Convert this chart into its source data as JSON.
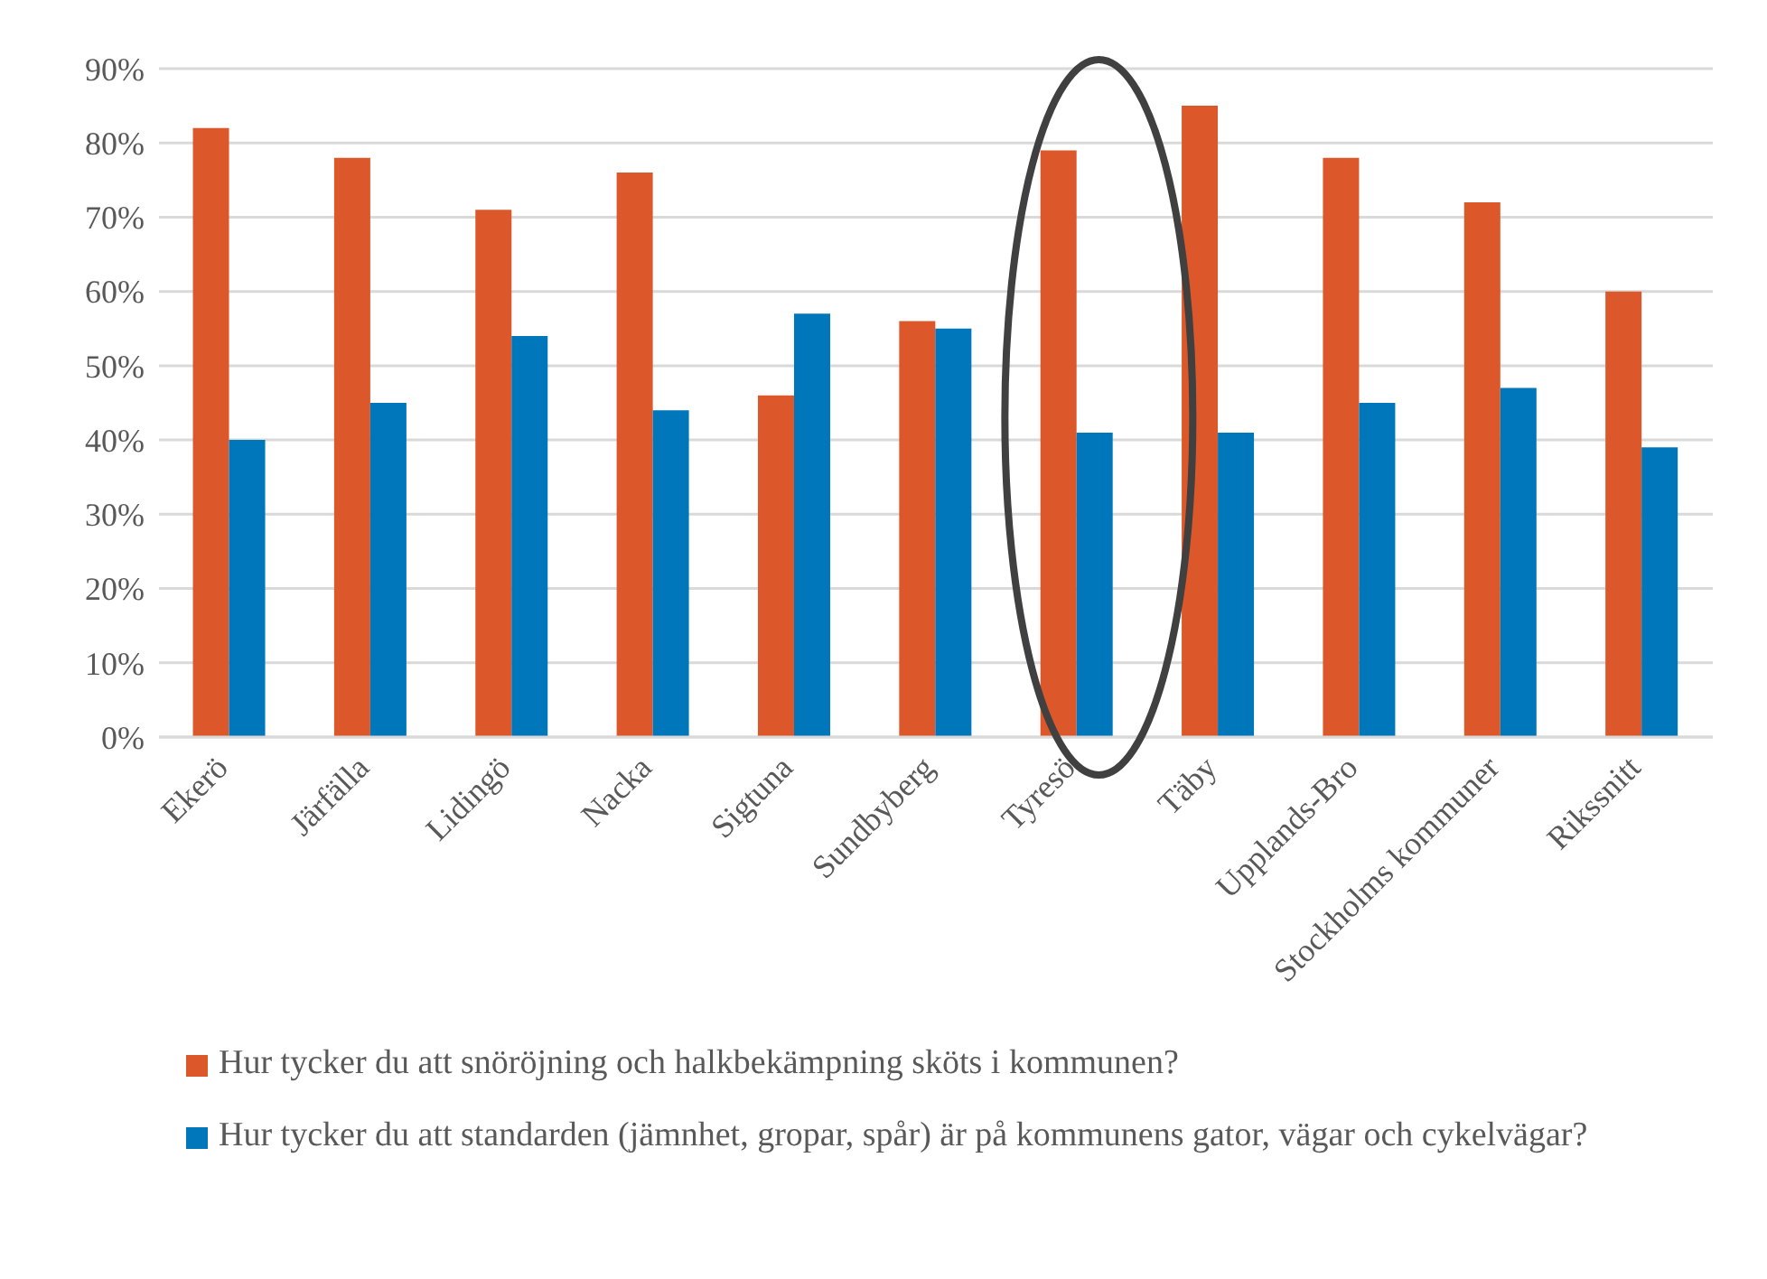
{
  "chart_data": {
    "type": "bar",
    "categories": [
      "Ekerö",
      "Järfälla",
      "Lidingö",
      "Nacka",
      "Sigtuna",
      "Sundbyberg",
      "Tyresö",
      "Täby",
      "Upplands-Bro",
      "Stockholms kommuner",
      "Rikssnitt"
    ],
    "series": [
      {
        "name": "Hur tycker du att snöröjning och halkbekämpning sköts i kommunen?",
        "color": "#dc582a",
        "values": [
          82,
          78,
          71,
          76,
          46,
          56,
          79,
          85,
          78,
          72,
          60
        ]
      },
      {
        "name": "Hur tycker du att standarden (jämnhet, gropar, spår) är på kommunens gator, vägar och cykelvägar?",
        "color": "#0077bb",
        "values": [
          40,
          45,
          54,
          44,
          57,
          55,
          41,
          41,
          45,
          47,
          39
        ]
      }
    ],
    "ylim": [
      0,
      90
    ],
    "yticks": [
      {
        "value": 0,
        "label": "0%"
      },
      {
        "value": 10,
        "label": "10%"
      },
      {
        "value": 20,
        "label": "20%"
      },
      {
        "value": 30,
        "label": "30%"
      },
      {
        "value": 40,
        "label": "40%"
      },
      {
        "value": 50,
        "label": "50%"
      },
      {
        "value": 60,
        "label": "60%"
      },
      {
        "value": 70,
        "label": "70%"
      },
      {
        "value": 80,
        "label": "80%"
      },
      {
        "value": 90,
        "label": "90%"
      }
    ],
    "grid": "y",
    "legend": "bottom"
  }
}
